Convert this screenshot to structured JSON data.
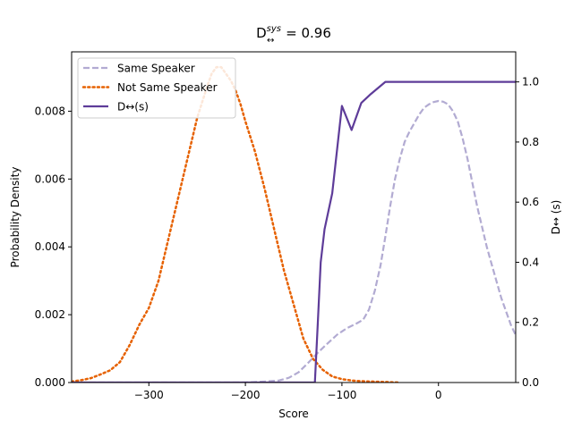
{
  "chart_data": {
    "type": "line",
    "title_main": "D",
    "title_sup": "sys",
    "title_sub": "↔",
    "title_rest": " = 0.96",
    "xlabel": "Score",
    "ylabel_left": "Probability Density",
    "ylabel_right": "D↔ (s)",
    "xlim": [
      -380,
      80
    ],
    "ylim_left": [
      0,
      0.00975
    ],
    "ylim_right": [
      0,
      1.1
    ],
    "x_ticks": [
      -300,
      -200,
      -100,
      0
    ],
    "x_tick_labels": [
      "−300",
      "−200",
      "−100",
      "0"
    ],
    "y_left_ticks": [
      0,
      0.002,
      0.004,
      0.006,
      0.008
    ],
    "y_left_tick_labels": [
      "0.000",
      "0.002",
      "0.004",
      "0.006",
      "0.008"
    ],
    "y_right_ticks": [
      0,
      0.2,
      0.4,
      0.6,
      0.8,
      1.0
    ],
    "y_right_tick_labels": [
      "0.0",
      "0.2",
      "0.4",
      "0.6",
      "0.8",
      "1.0"
    ],
    "legend_position": "top-left",
    "grid": false,
    "series": [
      {
        "name": "Same Speaker",
        "axis": "left",
        "color": "#b2abd2",
        "style": "dashed",
        "x": [
          -380,
          -200,
          -180,
          -165,
          -155,
          -145,
          -135,
          -125,
          -115,
          -105,
          -95,
          -85,
          -78,
          -72,
          -66,
          -60,
          -55,
          -50,
          -45,
          -40,
          -35,
          -30,
          -25,
          -20,
          -15,
          -10,
          -5,
          0,
          5,
          10,
          15,
          20,
          25,
          30,
          35,
          40,
          45,
          50,
          55,
          60,
          65,
          70,
          75,
          80
        ],
        "values": [
          0,
          0,
          3e-05,
          6e-05,
          0.00014,
          0.0003,
          0.00058,
          0.00088,
          0.00115,
          0.00141,
          0.0016,
          0.00174,
          0.00185,
          0.00215,
          0.0027,
          0.00345,
          0.0043,
          0.0052,
          0.006,
          0.0066,
          0.0071,
          0.0074,
          0.00765,
          0.0079,
          0.0081,
          0.0082,
          0.00827,
          0.0083,
          0.00828,
          0.0082,
          0.008,
          0.0077,
          0.0072,
          0.0066,
          0.0059,
          0.0052,
          0.0046,
          0.004,
          0.0035,
          0.003,
          0.0025,
          0.0021,
          0.0017,
          0.0014
        ]
      },
      {
        "name": "Not Same Speaker",
        "axis": "left",
        "color": "#e66101",
        "style": "dotted",
        "x": [
          -380,
          -370,
          -360,
          -350,
          -340,
          -330,
          -320,
          -310,
          -300,
          -290,
          -280,
          -270,
          -260,
          -250,
          -240,
          -235,
          -230,
          -225,
          -220,
          -215,
          -210,
          -205,
          -200,
          -190,
          -180,
          -170,
          -160,
          -150,
          -140,
          -130,
          -120,
          -110,
          -100,
          -90,
          -80,
          -70,
          -60,
          -50,
          -40
        ],
        "values": [
          3e-05,
          7e-05,
          0.00013,
          0.00024,
          0.00036,
          0.0006,
          0.0011,
          0.0017,
          0.0022,
          0.003,
          0.0042,
          0.0054,
          0.0066,
          0.0078,
          0.0087,
          0.0091,
          0.0093,
          0.0093,
          0.0091,
          0.0089,
          0.0086,
          0.0082,
          0.0077,
          0.0068,
          0.0057,
          0.0045,
          0.0033,
          0.0023,
          0.0013,
          0.0007,
          0.00038,
          0.00018,
          0.0001,
          6e-05,
          4e-05,
          3e-05,
          2e-05,
          1e-05,
          0
        ]
      },
      {
        "name": "D↔(s)",
        "axis": "right",
        "color": "#5e3c99",
        "style": "solid",
        "x": [
          -380,
          -130,
          -128,
          -125,
          -122,
          -118,
          -110,
          -100,
          -90,
          -80,
          -70,
          -55,
          -40,
          0,
          80
        ],
        "values": [
          0,
          0,
          0,
          0.2,
          0.4,
          0.51,
          0.63,
          0.92,
          0.84,
          0.93,
          0.96,
          1.0,
          1.0,
          1.0,
          1.0
        ]
      }
    ]
  }
}
